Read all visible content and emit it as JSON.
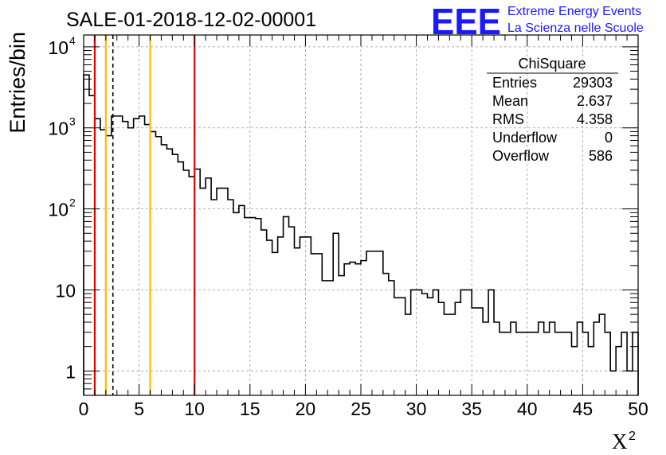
{
  "header": {
    "title": "SALE-01-2018-12-02-00001",
    "logo_text": "EEE",
    "logo_line1": "Extreme Energy Events",
    "logo_line2": "La Scienza nelle Scuole"
  },
  "colors": {
    "logo_blue": "#1a1aff",
    "red_line": "#e00000",
    "orange_line": "#ffbb00",
    "histogram": "#000000",
    "grid": "#999999"
  },
  "stats": {
    "title": "ChiSquare",
    "rows": [
      {
        "label": "Entries",
        "value": "29303"
      },
      {
        "label": "Mean",
        "value": "2.637"
      },
      {
        "label": "RMS",
        "value": "4.358"
      },
      {
        "label": "Underflow",
        "value": "0"
      },
      {
        "label": "Overflow",
        "value": "586"
      }
    ]
  },
  "chart_data": {
    "type": "histogram",
    "title": "SALE-01-2018-12-02-00001",
    "xlabel": "X",
    "xlabel_superscript": "2",
    "ylabel": "Entries/bin",
    "xlim": [
      0,
      50
    ],
    "ylim": [
      0.5,
      14000
    ],
    "yscale": "log",
    "grid": true,
    "bin_width": 0.5,
    "x_ticks": [
      "0",
      "5",
      "10",
      "15",
      "20",
      "25",
      "30",
      "35",
      "40",
      "45",
      "50"
    ],
    "x_tick_values": [
      0,
      5,
      10,
      15,
      20,
      25,
      30,
      35,
      40,
      45,
      50
    ],
    "y_ticks": [
      {
        "value": 1,
        "label": "1"
      },
      {
        "value": 10,
        "label": "10"
      },
      {
        "value": 100,
        "label": "10",
        "exp": "2"
      },
      {
        "value": 1000,
        "label": "10",
        "exp": "3"
      },
      {
        "value": 10000,
        "label": "10",
        "exp": "4"
      }
    ],
    "values": [
      4500,
      2500,
      1300,
      950,
      800,
      1400,
      1400,
      1200,
      1000,
      1300,
      1400,
      1100,
      900,
      780,
      620,
      550,
      470,
      380,
      300,
      250,
      310,
      180,
      240,
      130,
      180,
      180,
      130,
      90,
      110,
      78,
      78,
      76,
      55,
      41,
      29,
      45,
      80,
      60,
      33,
      45,
      45,
      28,
      28,
      13,
      13,
      50,
      15,
      21,
      22,
      21,
      23,
      30,
      30,
      30,
      16,
      13,
      8,
      8,
      5,
      10,
      10,
      9,
      8,
      10,
      7,
      5,
      5,
      7,
      10,
      10,
      6,
      6,
      4,
      10,
      4,
      3,
      3,
      4,
      3,
      3,
      3,
      3,
      4,
      3,
      4,
      3,
      3,
      3,
      2,
      4,
      3,
      2,
      4,
      5,
      3,
      1,
      2,
      3,
      1,
      3
    ],
    "vertical_lines": [
      {
        "x": 1,
        "color": "#e00000",
        "style": "solid"
      },
      {
        "x": 2,
        "color": "#ffbb00",
        "style": "solid"
      },
      {
        "x": 2.637,
        "color": "#000000",
        "style": "dashed"
      },
      {
        "x": 6,
        "color": "#ffbb00",
        "style": "solid"
      },
      {
        "x": 10,
        "color": "#e00000",
        "style": "solid"
      }
    ]
  }
}
